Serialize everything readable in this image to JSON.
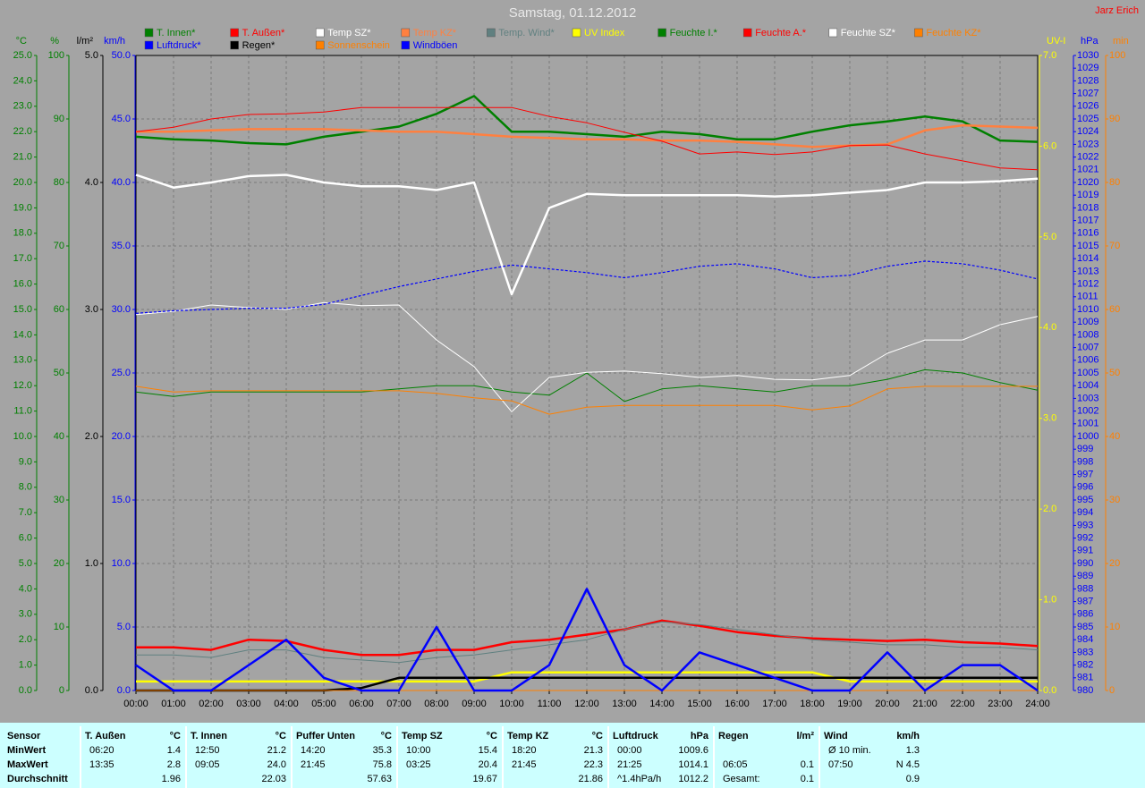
{
  "chart_data": {
    "type": "line",
    "title": "Samstag, 01.12.2012",
    "author": "Jarz Erich",
    "x": [
      0,
      1,
      2,
      3,
      4,
      5,
      6,
      7,
      8,
      9,
      10,
      11,
      12,
      13,
      14,
      15,
      16,
      17,
      18,
      19,
      20,
      21,
      22,
      23,
      24
    ],
    "xlim": [
      0,
      24
    ],
    "xticks": [
      {
        "value": 0,
        "label": "00:00"
      },
      {
        "value": 1,
        "label": "01:00"
      },
      {
        "value": 2,
        "label": "02:00"
      },
      {
        "value": 3,
        "label": "03:00"
      },
      {
        "value": 4,
        "label": "04:00"
      },
      {
        "value": 5,
        "label": "05:00"
      },
      {
        "value": 6,
        "label": "06:00"
      },
      {
        "value": 7,
        "label": "07:00"
      },
      {
        "value": 8,
        "label": "08:00"
      },
      {
        "value": 9,
        "label": "09:00"
      },
      {
        "value": 10,
        "label": "10:00"
      },
      {
        "value": 11,
        "label": "11:00"
      },
      {
        "value": 12,
        "label": "12:00"
      },
      {
        "value": 13,
        "label": "13:00"
      },
      {
        "value": 14,
        "label": "14:00"
      },
      {
        "value": 15,
        "label": "15:00"
      },
      {
        "value": 16,
        "label": "16:00"
      },
      {
        "value": 17,
        "label": "17:00"
      },
      {
        "value": 18,
        "label": "18:00"
      },
      {
        "value": 19,
        "label": "19:00"
      },
      {
        "value": 20,
        "label": "20:00"
      },
      {
        "value": 21,
        "label": "21:00"
      },
      {
        "value": 22,
        "label": "22:00"
      },
      {
        "value": 23,
        "label": "23:00"
      },
      {
        "value": 24,
        "label": "24:00"
      }
    ],
    "grid": true,
    "axes": [
      {
        "label": "°C",
        "side": "left",
        "color": "#008000",
        "lim": [
          0,
          25
        ],
        "ticks": [
          {
            "value": 0,
            "label": "0.0"
          },
          {
            "value": 1,
            "label": "1.0"
          },
          {
            "value": 2,
            "label": "2.0"
          },
          {
            "value": 3,
            "label": "3.0"
          },
          {
            "value": 4,
            "label": "4.0"
          },
          {
            "value": 5,
            "label": "5.0"
          },
          {
            "value": 6,
            "label": "6.0"
          },
          {
            "value": 7,
            "label": "7.0"
          },
          {
            "value": 8,
            "label": "8.0"
          },
          {
            "value": 9,
            "label": "9.0"
          },
          {
            "value": 10,
            "label": "10.0"
          },
          {
            "value": 11,
            "label": "11.0"
          },
          {
            "value": 12,
            "label": "12.0"
          },
          {
            "value": 13,
            "label": "13.0"
          },
          {
            "value": 14,
            "label": "14.0"
          },
          {
            "value": 15,
            "label": "15.0"
          },
          {
            "value": 16,
            "label": "16.0"
          },
          {
            "value": 17,
            "label": "17.0"
          },
          {
            "value": 18,
            "label": "18.0"
          },
          {
            "value": 19,
            "label": "19.0"
          },
          {
            "value": 20,
            "label": "20.0"
          },
          {
            "value": 21,
            "label": "21.0"
          },
          {
            "value": 22,
            "label": "22.0"
          },
          {
            "value": 23,
            "label": "23.0"
          },
          {
            "value": 24,
            "label": "24.0"
          },
          {
            "value": 25,
            "label": "25.0"
          }
        ]
      },
      {
        "label": "%",
        "side": "left",
        "color": "#008000",
        "lim": [
          0,
          100
        ],
        "ticks": [
          0,
          10,
          20,
          30,
          40,
          50,
          60,
          70,
          80,
          90,
          100
        ]
      },
      {
        "label": "l/m²",
        "side": "left",
        "color": "#000000",
        "lim": [
          0,
          5
        ],
        "ticks": [
          {
            "value": 0,
            "label": "0.0"
          },
          {
            "value": 1,
            "label": "1.0"
          },
          {
            "value": 2,
            "label": "2.0"
          },
          {
            "value": 3,
            "label": "3.0"
          },
          {
            "value": 4,
            "label": "4.0"
          },
          {
            "value": 5,
            "label": "5.0"
          }
        ]
      },
      {
        "label": "km/h",
        "side": "left",
        "color": "#0000ff",
        "lim": [
          0,
          50
        ],
        "grid": true,
        "ticks": [
          {
            "value": 0,
            "label": "0.0"
          },
          {
            "value": 5,
            "label": "5.0"
          },
          {
            "value": 10,
            "label": "10.0"
          },
          {
            "value": 15,
            "label": "15.0"
          },
          {
            "value": 20,
            "label": "20.0"
          },
          {
            "value": 25,
            "label": "25.0"
          },
          {
            "value": 30,
            "label": "30.0"
          },
          {
            "value": 35,
            "label": "35.0"
          },
          {
            "value": 40,
            "label": "40.0"
          },
          {
            "value": 45,
            "label": "45.0"
          },
          {
            "value": 50,
            "label": "50.0"
          }
        ]
      },
      {
        "label": "UV-I",
        "side": "right",
        "color": "#ffff00",
        "lim": [
          0,
          7
        ],
        "ticks": [
          {
            "value": 0,
            "label": "0.0"
          },
          {
            "value": 1,
            "label": "1.0"
          },
          {
            "value": 2,
            "label": "2.0"
          },
          {
            "value": 3,
            "label": "3.0"
          },
          {
            "value": 4,
            "label": "4.0"
          },
          {
            "value": 5,
            "label": "5.0"
          },
          {
            "value": 6,
            "label": "6.0"
          },
          {
            "value": 7,
            "label": "7.0"
          }
        ]
      },
      {
        "label": "hPa",
        "side": "right",
        "color": "#0000ff",
        "lim": [
          980,
          1030
        ],
        "ticks": [
          980,
          981,
          982,
          983,
          984,
          985,
          986,
          987,
          988,
          989,
          990,
          991,
          992,
          993,
          994,
          995,
          996,
          997,
          998,
          999,
          1000,
          1001,
          1002,
          1003,
          1004,
          1005,
          1006,
          1007,
          1008,
          1009,
          1010,
          1011,
          1012,
          1013,
          1014,
          1015,
          1016,
          1017,
          1018,
          1019,
          1020,
          1021,
          1022,
          1023,
          1024,
          1025,
          1026,
          1027,
          1028,
          1029,
          1030
        ]
      },
      {
        "label": "min",
        "side": "right",
        "color": "#ff8000",
        "lim": [
          0,
          100
        ],
        "ticks": [
          0,
          10,
          20,
          30,
          40,
          50,
          60,
          70,
          80,
          90,
          100
        ]
      }
    ],
    "series": [
      {
        "name": "T. Innen*",
        "color": "#008000",
        "axis": 0,
        "line": "thick",
        "values": [
          21.8,
          21.7,
          21.65,
          21.55,
          21.5,
          21.8,
          22.0,
          22.2,
          22.7,
          23.4,
          22.0,
          22.0,
          21.9,
          21.8,
          22.0,
          21.9,
          21.7,
          21.7,
          22.0,
          22.25,
          22.4,
          22.6,
          22.4,
          21.65,
          21.6
        ]
      },
      {
        "name": "T. Außen*",
        "color": "#ff0000",
        "axis": 0,
        "line": "thick",
        "values": [
          1.7,
          1.7,
          1.6,
          2.0,
          1.95,
          1.6,
          1.4,
          1.4,
          1.6,
          1.6,
          1.9,
          2.0,
          2.2,
          2.4,
          2.75,
          2.55,
          2.3,
          2.15,
          2.05,
          2.0,
          1.95,
          2.0,
          1.9,
          1.85,
          1.75
        ]
      },
      {
        "name": "Temp SZ*",
        "color": "#ffffff",
        "axis": 0,
        "line": "thick",
        "values": [
          20.3,
          19.8,
          20.0,
          20.25,
          20.3,
          20.0,
          19.85,
          19.85,
          19.7,
          20.0,
          15.6,
          19.0,
          19.55,
          19.5,
          19.5,
          19.5,
          19.5,
          19.45,
          19.5,
          19.6,
          19.7,
          20.0,
          20.0,
          20.05,
          20.15
        ]
      },
      {
        "name": "Temp KZ*",
        "color": "#ff8040",
        "axis": 0,
        "line": "thick",
        "values": [
          22.0,
          22.0,
          22.05,
          22.1,
          22.1,
          22.1,
          22.05,
          22.0,
          22.0,
          21.9,
          21.8,
          21.75,
          21.7,
          21.7,
          21.65,
          21.65,
          21.6,
          21.5,
          21.4,
          21.45,
          21.5,
          22.05,
          22.25,
          22.2,
          22.15
        ]
      },
      {
        "name": "Temp. Wind*",
        "color": "#608080",
        "axis": 0,
        "line": "thin",
        "values": [
          1.4,
          1.4,
          1.3,
          1.6,
          1.6,
          1.3,
          1.2,
          1.1,
          1.3,
          1.4,
          1.6,
          1.8,
          2.0,
          2.4,
          2.7,
          2.6,
          2.4,
          2.2,
          2.0,
          1.9,
          1.8,
          1.8,
          1.7,
          1.7,
          1.6
        ]
      },
      {
        "name": "UV Index",
        "color": "#ffff00",
        "axis": 4,
        "line": "thick",
        "values": [
          0.1,
          0.1,
          0.1,
          0.1,
          0.1,
          0.1,
          0.1,
          0.1,
          0.1,
          0.1,
          0.2,
          0.2,
          0.2,
          0.2,
          0.2,
          0.2,
          0.2,
          0.2,
          0.2,
          0.1,
          0.1,
          0.1,
          0.1,
          0.1,
          0.1
        ]
      },
      {
        "name": "Feuchte I.*",
        "color": "#008000",
        "axis": 1,
        "line": "thin",
        "values": [
          47,
          46.3,
          47,
          47,
          47,
          47,
          47,
          47.5,
          48,
          48,
          47,
          46.5,
          50,
          45.5,
          47.5,
          48,
          47.5,
          47,
          48,
          48,
          49,
          50.5,
          50,
          48.5,
          47.3
        ]
      },
      {
        "name": "Feuchte A.*",
        "color": "#ff0000",
        "axis": 1,
        "line": "thin",
        "values": [
          88,
          88.7,
          90,
          90.7,
          90.8,
          91.1,
          91.8,
          91.8,
          91.8,
          91.8,
          91.8,
          90.4,
          89.4,
          87.9,
          86.5,
          84.5,
          84.8,
          84.4,
          84.8,
          85.8,
          85.9,
          84.5,
          83.4,
          82.3,
          82
        ]
      },
      {
        "name": "Feuchte SZ*",
        "color": "#ffffff",
        "axis": 1,
        "line": "thin",
        "values": [
          59.2,
          59.7,
          60.7,
          60.3,
          60,
          61.1,
          60.6,
          60.7,
          55.2,
          51,
          43.9,
          49.3,
          50.1,
          50.3,
          49.9,
          49.3,
          49.6,
          49,
          48.9,
          49.6,
          53.1,
          55.2,
          55.2,
          57.6,
          58.9
        ]
      },
      {
        "name": "Feuchte KZ*",
        "color": "#ff8000",
        "axis": 1,
        "line": "thin",
        "values": [
          47.9,
          47,
          47.2,
          47.2,
          47.2,
          47.2,
          47.2,
          47.2,
          46.8,
          46.1,
          45.6,
          43.5,
          44.6,
          44.9,
          44.9,
          44.9,
          44.9,
          44.9,
          44.2,
          44.8,
          47.5,
          47.9,
          47.9,
          47.9,
          47.9
        ]
      },
      {
        "name": "Luftdruck*",
        "color": "#0000ff",
        "axis": 5,
        "line": "dotted",
        "values": [
          1009.7,
          1009.9,
          1010,
          1010.1,
          1010.1,
          1010.4,
          1011.1,
          1011.8,
          1012.4,
          1013,
          1013.5,
          1013.2,
          1012.9,
          1012.5,
          1012.9,
          1013.4,
          1013.6,
          1013.2,
          1012.5,
          1012.7,
          1013.4,
          1013.8,
          1013.6,
          1013.1,
          1012.4
        ]
      },
      {
        "name": "Regen*",
        "color": "#000000",
        "axis": 2,
        "line": "thick",
        "values": [
          0,
          0,
          0,
          0,
          0,
          0,
          0.02,
          0.1,
          0.1,
          0.1,
          0.1,
          0.1,
          0.1,
          0.1,
          0.1,
          0.1,
          0.1,
          0.1,
          0.1,
          0.1,
          0.1,
          0.1,
          0.1,
          0.1,
          0.1
        ]
      },
      {
        "name": "Sonnenschein",
        "color": "#ff8000",
        "axis": 6,
        "line": "thin",
        "values": [
          0,
          0,
          0,
          0,
          0,
          0,
          0,
          0,
          0,
          0,
          0,
          0,
          0,
          0,
          0,
          0,
          0,
          0,
          0,
          0,
          0,
          0,
          0,
          0,
          0
        ]
      },
      {
        "name": "Windböen",
        "color": "#0000ff",
        "axis": 3,
        "line": "thick",
        "values": [
          2,
          0,
          0,
          2,
          4,
          1,
          0,
          0,
          5,
          0,
          0,
          2,
          8,
          2,
          0,
          3,
          2,
          1,
          0,
          0,
          3,
          0,
          2,
          2,
          0
        ]
      }
    ]
  },
  "stats": {
    "row_labels": [
      "Sensor",
      "MinWert",
      "MaxWert",
      "Durchschnitt"
    ],
    "groups": [
      {
        "name": "T. Außen",
        "unit": "°C",
        "rows": [
          {
            "time": "06:20",
            "value": "1.4"
          },
          {
            "time": "13:35",
            "value": "2.8"
          },
          {
            "value": "1.96"
          }
        ]
      },
      {
        "name": "T. Innen",
        "unit": "°C",
        "rows": [
          {
            "time": "12:50",
            "value": "21.2"
          },
          {
            "time": "09:05",
            "value": "24.0"
          },
          {
            "value": "22.03"
          }
        ]
      },
      {
        "name": "Puffer Unten",
        "unit": "°C",
        "rows": [
          {
            "time": "14:20",
            "value": "35.3"
          },
          {
            "time": "21:45",
            "value": "75.8"
          },
          {
            "value": "57.63"
          }
        ]
      },
      {
        "name": "Temp SZ",
        "unit": "°C",
        "rows": [
          {
            "time": "10:00",
            "value": "15.4"
          },
          {
            "time": "03:25",
            "value": "20.4"
          },
          {
            "value": "19.67"
          }
        ]
      },
      {
        "name": "Temp KZ",
        "unit": "°C",
        "rows": [
          {
            "time": "18:20",
            "value": "21.3"
          },
          {
            "time": "21:45",
            "value": "22.3"
          },
          {
            "value": "21.86"
          }
        ]
      },
      {
        "name": "Luftdruck",
        "unit": "hPa",
        "rows": [
          {
            "time": "00:00",
            "value": "1009.6"
          },
          {
            "time": "21:25",
            "value": "1014.1"
          },
          {
            "time": "^1.4hPa/h",
            "value": "1012.2"
          }
        ]
      },
      {
        "name": "Regen",
        "unit": "l/m²",
        "rows": [
          null,
          {
            "time": "06:05",
            "value": "0.1"
          },
          {
            "time": "Gesamt:",
            "value": "0.1"
          }
        ]
      },
      {
        "name": "Wind",
        "unit": "km/h",
        "rows": [
          {
            "time": "Ø 10 min.",
            "value": "1.3"
          },
          {
            "time": "07:50",
            "value": "N 4.5"
          },
          {
            "value": "0.9"
          }
        ]
      }
    ]
  }
}
